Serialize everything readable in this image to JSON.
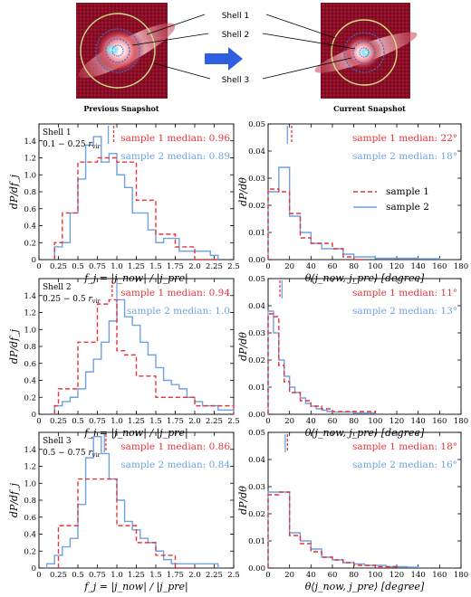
{
  "header": {
    "prev_caption": "Previous Snapshot",
    "curr_caption": "Current Snapshot",
    "shell_labels": [
      "Shell 1",
      "Shell 2",
      "Shell 3"
    ]
  },
  "colors": {
    "sample1": "#e8343b",
    "sample2": "#6fa2e0"
  },
  "legend": {
    "sample1": "sample 1",
    "sample2": "sample 2"
  },
  "xlabel_fj": "f_j = |j_now| / |j_pre|",
  "xlabel_theta": "θ⟨j_now, j_pre⟩ [degree]",
  "ylabel_fj": "dP/df_j",
  "ylabel_theta": "dP/dθ",
  "chart_data": [
    {
      "type": "histogram",
      "row": 0,
      "kind": "fj",
      "shell": "Shell 1",
      "range": "0.1 − 0.25 r_vir",
      "xlim": [
        0,
        2.5
      ],
      "ylim": [
        0,
        1.6
      ],
      "xticks": [
        "0",
        "0.25",
        "0.5",
        "0.75",
        "1.0",
        "1.25",
        "1.5",
        "1.75",
        "2.0",
        "2.25",
        "2.5"
      ],
      "yticks": [
        "0",
        "0.2",
        "0.4",
        "0.6",
        "0.8",
        "1.0",
        "1.2",
        "1.4"
      ],
      "median1": 0.96,
      "median2": 0.89,
      "median1_text": "sample 1 median: 0.96",
      "median2_text": "sample 2 median: 0.89",
      "series": [
        {
          "name": "sample 1",
          "edges": [
            0.2,
            0.3,
            0.5,
            0.75,
            1.0,
            1.25,
            1.5,
            1.75,
            2.0,
            2.3
          ],
          "values": [
            0.2,
            0.55,
            1.15,
            1.2,
            1.15,
            0.7,
            0.3,
            0.15,
            0.0
          ]
        },
        {
          "name": "sample 2",
          "edges": [
            0.2,
            0.3,
            0.4,
            0.5,
            0.6,
            0.7,
            0.8,
            0.9,
            1.0,
            1.1,
            1.2,
            1.3,
            1.4,
            1.5,
            1.6,
            1.7,
            1.8,
            1.9,
            2.0,
            2.1,
            2.2,
            2.3
          ],
          "values": [
            0.15,
            0.2,
            0.55,
            0.95,
            1.35,
            1.45,
            1.15,
            1.25,
            1.0,
            0.85,
            0.55,
            0.55,
            0.35,
            0.2,
            0.25,
            0.25,
            0.1,
            0.1,
            0.1,
            0.1,
            0.05
          ]
        }
      ]
    },
    {
      "type": "histogram",
      "row": 0,
      "kind": "theta",
      "xlim": [
        0,
        180
      ],
      "ylim": [
        0,
        0.05
      ],
      "xticks": [
        "0",
        "20",
        "40",
        "60",
        "80",
        "100",
        "120",
        "140",
        "160",
        "180"
      ],
      "yticks": [
        "0.00",
        "0.01",
        "0.02",
        "0.03",
        "0.04",
        "0.05"
      ],
      "median1": 22,
      "median2": 18,
      "median1_text": "sample 1 median: 22°",
      "median2_text": "sample 2 median: 18°",
      "legend": true,
      "series": [
        {
          "name": "sample 1",
          "edges": [
            0,
            10,
            20,
            30,
            40,
            50,
            60,
            70,
            80,
            90
          ],
          "values": [
            0.026,
            0.025,
            0.017,
            0.008,
            0.006,
            0.006,
            0.004,
            0.001,
            0.0
          ]
        },
        {
          "name": "sample 2",
          "edges": [
            0,
            10,
            20,
            30,
            40,
            50,
            60,
            70,
            80,
            90,
            100,
            110,
            120,
            130,
            140,
            150,
            160
          ],
          "values": [
            0.025,
            0.034,
            0.016,
            0.01,
            0.006,
            0.004,
            0.004,
            0.002,
            0.001,
            0.001,
            0.0005,
            0.0005,
            0.0005,
            0.0005,
            0.0003,
            0.0003
          ]
        }
      ]
    },
    {
      "type": "histogram",
      "row": 1,
      "kind": "fj",
      "shell": "Shell 2",
      "range": "0.25 − 0.5 r_vir",
      "xlim": [
        0,
        2.5
      ],
      "ylim": [
        0,
        1.6
      ],
      "xticks": [
        "0",
        "0.25",
        "0.5",
        "0.75",
        "1.0",
        "1.25",
        "1.5",
        "1.75",
        "2.0",
        "2.25",
        "2.5"
      ],
      "yticks": [
        "0",
        "0.2",
        "0.4",
        "0.6",
        "0.8",
        "1.0",
        "1.2",
        "1.4"
      ],
      "median1": 0.94,
      "median2": 1.0,
      "median1_text": "sample 1 median: 0.94",
      "median2_text": "sample 2 median: 1.0",
      "series": [
        {
          "name": "sample 1",
          "edges": [
            0.2,
            0.25,
            0.5,
            0.75,
            0.9,
            1.0,
            1.1,
            1.25,
            1.5,
            1.75,
            2.0,
            2.25,
            2.5
          ],
          "values": [
            0.1,
            0.3,
            0.85,
            1.3,
            1.35,
            0.75,
            0.7,
            0.45,
            0.2,
            0.2,
            0.1,
            0.1
          ]
        },
        {
          "name": "sample 2",
          "edges": [
            0.2,
            0.3,
            0.4,
            0.5,
            0.6,
            0.7,
            0.8,
            0.9,
            1.0,
            1.1,
            1.2,
            1.3,
            1.4,
            1.5,
            1.6,
            1.7,
            1.8,
            1.9,
            2.0,
            2.1,
            2.2,
            2.3,
            2.4,
            2.5
          ],
          "values": [
            0.1,
            0.15,
            0.2,
            0.3,
            0.5,
            0.65,
            0.85,
            1.1,
            1.35,
            1.15,
            1.05,
            0.85,
            0.7,
            0.55,
            0.4,
            0.35,
            0.3,
            0.2,
            0.15,
            0.1,
            0.1,
            0.05,
            0.05
          ]
        }
      ]
    },
    {
      "type": "histogram",
      "row": 1,
      "kind": "theta",
      "xlim": [
        0,
        180
      ],
      "ylim": [
        0,
        0.05
      ],
      "xticks": [
        "0",
        "20",
        "40",
        "60",
        "80",
        "100",
        "120",
        "140",
        "160",
        "180"
      ],
      "yticks": [
        "0.00",
        "0.01",
        "0.02",
        "0.03",
        "0.04",
        "0.05"
      ],
      "median1": 11,
      "median2": 13,
      "median1_text": "sample 1 median: 11°",
      "median2_text": "sample 2 median: 13°",
      "series": [
        {
          "name": "sample 1",
          "edges": [
            0,
            5,
            10,
            15,
            20,
            30,
            40,
            50,
            60,
            80,
            100
          ],
          "values": [
            0.037,
            0.036,
            0.018,
            0.012,
            0.008,
            0.005,
            0.003,
            0.002,
            0.001,
            0.001
          ]
        },
        {
          "name": "sample 2",
          "edges": [
            0,
            5,
            10,
            15,
            20,
            25,
            30,
            35,
            40,
            45,
            50,
            55,
            60,
            70,
            80,
            90,
            100
          ],
          "values": [
            0.038,
            0.03,
            0.02,
            0.014,
            0.01,
            0.008,
            0.006,
            0.004,
            0.003,
            0.002,
            0.0015,
            0.001,
            0.0008,
            0.0008,
            0.0005,
            0.0005
          ]
        }
      ]
    },
    {
      "type": "histogram",
      "row": 2,
      "kind": "fj",
      "shell": "Shell 3",
      "range": "0.5 − 0.75 r_vir",
      "xlim": [
        0,
        2.5
      ],
      "ylim": [
        0,
        1.6
      ],
      "xticks": [
        "0",
        "0.25",
        "0.5",
        "0.75",
        "1.0",
        "1.25",
        "1.5",
        "1.75",
        "2.0",
        "2.25",
        "2.5"
      ],
      "yticks": [
        "0",
        "0.2",
        "0.4",
        "0.6",
        "0.8",
        "1.0",
        "1.2",
        "1.4"
      ],
      "median1": 0.86,
      "median2": 0.84,
      "median1_text": "sample 1 median: 0.86",
      "median2_text": "sample 2 median: 0.84",
      "series": [
        {
          "name": "sample 1",
          "edges": [
            0.25,
            0.5,
            0.75,
            1.0,
            1.25,
            1.5,
            1.75,
            2.0
          ],
          "values": [
            0.5,
            1.05,
            1.05,
            0.5,
            0.3,
            0.15,
            0.0
          ]
        },
        {
          "name": "sample 2",
          "edges": [
            0.1,
            0.2,
            0.3,
            0.4,
            0.5,
            0.6,
            0.7,
            0.8,
            0.9,
            1.0,
            1.1,
            1.2,
            1.3,
            1.4,
            1.5,
            1.6,
            1.7,
            1.8,
            1.9,
            2.0,
            2.1,
            2.2,
            2.3
          ],
          "values": [
            0.05,
            0.15,
            0.25,
            0.35,
            0.75,
            1.3,
            1.55,
            1.35,
            1.05,
            0.8,
            0.55,
            0.45,
            0.35,
            0.3,
            0.2,
            0.1,
            0.05,
            0.05,
            0.05,
            0.05,
            0.05,
            0.05
          ]
        }
      ]
    },
    {
      "type": "histogram",
      "row": 2,
      "kind": "theta",
      "xlim": [
        0,
        180
      ],
      "ylim": [
        0,
        0.05
      ],
      "xticks": [
        "0",
        "20",
        "40",
        "60",
        "80",
        "100",
        "120",
        "140",
        "160",
        "180"
      ],
      "yticks": [
        "0.00",
        "0.01",
        "0.02",
        "0.03",
        "0.04",
        "0.05"
      ],
      "median1": 18,
      "median2": 16,
      "median1_text": "sample 1 median: 18°",
      "median2_text": "sample 2 median: 16°",
      "series": [
        {
          "name": "sample 1",
          "edges": [
            0,
            10,
            20,
            30,
            40,
            50,
            60,
            70,
            80,
            90,
            100,
            110,
            120
          ],
          "values": [
            0.027,
            0.028,
            0.012,
            0.009,
            0.006,
            0.004,
            0.003,
            0.002,
            0.001,
            0.001,
            0.0005,
            0.0005
          ]
        },
        {
          "name": "sample 2",
          "edges": [
            0,
            10,
            20,
            30,
            40,
            50,
            60,
            70,
            80,
            90,
            100,
            110,
            120,
            130,
            140
          ],
          "values": [
            0.028,
            0.028,
            0.013,
            0.01,
            0.007,
            0.004,
            0.003,
            0.002,
            0.0015,
            0.001,
            0.001,
            0.0005,
            0.0005,
            0.0003
          ]
        }
      ]
    }
  ]
}
